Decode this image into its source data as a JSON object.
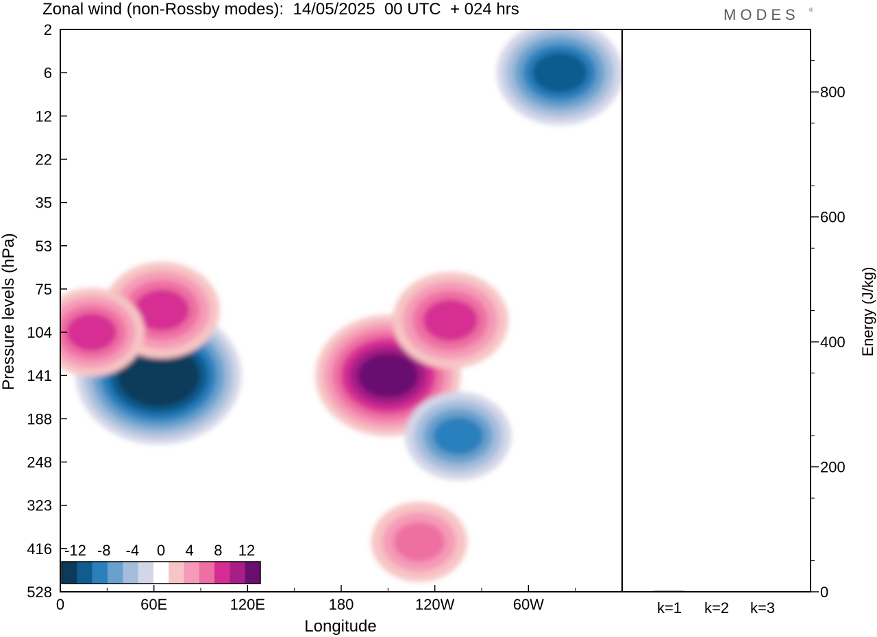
{
  "header": {
    "title": "Zonal wind (non-Rossby modes):  14/05/2025  00 UTC  + 024 hrs",
    "brand": "MODES",
    "brand_mark": "®"
  },
  "chart_data": [
    {
      "type": "heatmap",
      "title": "Zonal wind (non-Rossby modes):  14/05/2025  00 UTC  + 024 hrs",
      "xlabel": "Longitude",
      "ylabel": "Pressure levels (hPa)",
      "x_ticks": [
        "0",
        "60E",
        "120E",
        "180",
        "120W",
        "60W"
      ],
      "x_tick_degrees": [
        0,
        60,
        120,
        180,
        240,
        300
      ],
      "xlim": [
        0,
        360
      ],
      "y_ticks": [
        "2",
        "6",
        "12",
        "22",
        "35",
        "53",
        "75",
        "104",
        "141",
        "188",
        "248",
        "323",
        "416",
        "528"
      ],
      "y_scale": "pressure levels, top = 2 hPa",
      "colorbar": {
        "labels": [
          "-12",
          "-8",
          "-4",
          "0",
          "4",
          "8",
          "12"
        ],
        "levels": [
          -14,
          -12,
          -10,
          -8,
          -6,
          -4,
          -2,
          2,
          4,
          6,
          8,
          10,
          12,
          14
        ],
        "colors": [
          "#0b3a5a",
          "#115c8f",
          "#2c7fbd",
          "#6aa0cc",
          "#a4bddb",
          "#d3d6e8",
          "#ffffff",
          "#f7c5c5",
          "#f59bb7",
          "#ee6fa3",
          "#d62d92",
          "#a61e86",
          "#6a0f6f"
        ],
        "placement": "bottom-left inside plot"
      },
      "features": [
        {
          "sign": "negative",
          "lon": 63,
          "level": "141",
          "peak": -13
        },
        {
          "sign": "positive",
          "lon": 65,
          "level": "88",
          "peak": 8
        },
        {
          "sign": "positive",
          "lon": 210,
          "level": "141",
          "peak": 11
        },
        {
          "sign": "positive",
          "lon": 250,
          "level": "95",
          "peak": 8
        },
        {
          "sign": "negative",
          "lon": 255,
          "level": "210",
          "peak": -7
        },
        {
          "sign": "negative",
          "lon": 320,
          "level": "6",
          "peak": -9
        },
        {
          "sign": "positive",
          "lon": 20,
          "level": "104",
          "peak": 7
        },
        {
          "sign": "positive",
          "lon": 230,
          "level": "400",
          "peak": 6
        }
      ]
    },
    {
      "type": "bar",
      "categories": [
        "k=1",
        "k=2",
        "k=3"
      ],
      "values": [
        1.5,
        1.0,
        0.7
      ],
      "ylabel": "Energy (J/kg)",
      "y_ticks": [
        "0",
        "200",
        "400",
        "600",
        "800"
      ],
      "ylim": [
        0,
        900
      ]
    }
  ]
}
